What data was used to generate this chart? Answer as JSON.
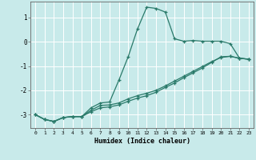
{
  "xlabel": "Humidex (Indice chaleur)",
  "bg_color": "#c8eaea",
  "grid_color": "#ffffff",
  "line_color": "#2a7a6a",
  "xlim": [
    -0.5,
    23.5
  ],
  "ylim": [
    -3.55,
    1.65
  ],
  "yticks": [
    -3,
    -2,
    -1,
    0,
    1
  ],
  "xticks": [
    0,
    1,
    2,
    3,
    4,
    5,
    6,
    7,
    8,
    9,
    10,
    11,
    12,
    13,
    14,
    15,
    16,
    17,
    18,
    19,
    20,
    21,
    22,
    23
  ],
  "series1_x": [
    0,
    1,
    2,
    3,
    4,
    5,
    6,
    7,
    8,
    9,
    10,
    11,
    12,
    13,
    14,
    15,
    16,
    17,
    18,
    19,
    20,
    21,
    22,
    23
  ],
  "series1_y": [
    -3.0,
    -3.2,
    -3.28,
    -3.12,
    -3.08,
    -3.08,
    -2.72,
    -2.52,
    -2.48,
    -1.58,
    -0.62,
    0.52,
    1.42,
    1.37,
    1.22,
    0.12,
    0.02,
    0.05,
    0.02,
    0.02,
    0.02,
    -0.08,
    -0.68,
    -0.72
  ],
  "series2_x": [
    0,
    1,
    2,
    3,
    4,
    5,
    6,
    7,
    8,
    9,
    10,
    11,
    12,
    13,
    14,
    15,
    16,
    17,
    18,
    19,
    20,
    21,
    22,
    23
  ],
  "series2_y": [
    -3.0,
    -3.2,
    -3.28,
    -3.12,
    -3.08,
    -3.08,
    -2.82,
    -2.62,
    -2.6,
    -2.52,
    -2.35,
    -2.22,
    -2.12,
    -2.0,
    -1.82,
    -1.62,
    -1.42,
    -1.22,
    -1.02,
    -0.82,
    -0.65,
    -0.6,
    -0.68,
    -0.72
  ],
  "series3_x": [
    0,
    1,
    2,
    3,
    4,
    5,
    6,
    7,
    8,
    9,
    10,
    11,
    12,
    13,
    14,
    15,
    16,
    17,
    18,
    19,
    20,
    21,
    22,
    23
  ],
  "series3_y": [
    -3.0,
    -3.2,
    -3.28,
    -3.12,
    -3.08,
    -3.08,
    -2.88,
    -2.72,
    -2.68,
    -2.6,
    -2.45,
    -2.32,
    -2.22,
    -2.08,
    -1.88,
    -1.7,
    -1.48,
    -1.28,
    -1.08,
    -0.85,
    -0.62,
    -0.6,
    -0.68,
    -0.72
  ],
  "figsize": [
    3.2,
    2.0
  ],
  "dpi": 100
}
